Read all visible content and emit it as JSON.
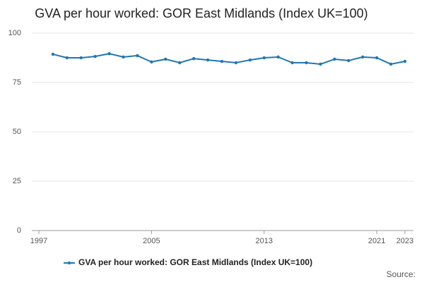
{
  "chart_data": {
    "type": "line",
    "title": "GVA per hour worked: GOR East Midlands (Index UK=100)",
    "x": [
      1998,
      1999,
      2000,
      2001,
      2002,
      2003,
      2004,
      2005,
      2006,
      2007,
      2008,
      2009,
      2010,
      2011,
      2012,
      2013,
      2014,
      2015,
      2016,
      2017,
      2018,
      2019,
      2020,
      2021,
      2022,
      2023
    ],
    "series": [
      {
        "name": "GVA per hour worked: GOR East Midlands (Index UK=100)",
        "color": "#1f77b4",
        "values": [
          89.3,
          87.5,
          87.5,
          88.2,
          89.6,
          87.9,
          88.6,
          85.4,
          86.8,
          85.0,
          87.1,
          86.4,
          85.7,
          85.0,
          86.4,
          87.5,
          87.9,
          85.0,
          85.0,
          84.3,
          86.8,
          86.1,
          87.9,
          87.5,
          84.3,
          85.7
        ]
      }
    ],
    "xlim": [
      1997,
      2023
    ],
    "xticks": [
      1997,
      2005,
      2013,
      2021,
      2023
    ],
    "ylim": [
      0,
      100
    ],
    "yticks": [
      0,
      25,
      50,
      75,
      100
    ],
    "grid": true,
    "legend": "bottom",
    "source": "Source:"
  }
}
